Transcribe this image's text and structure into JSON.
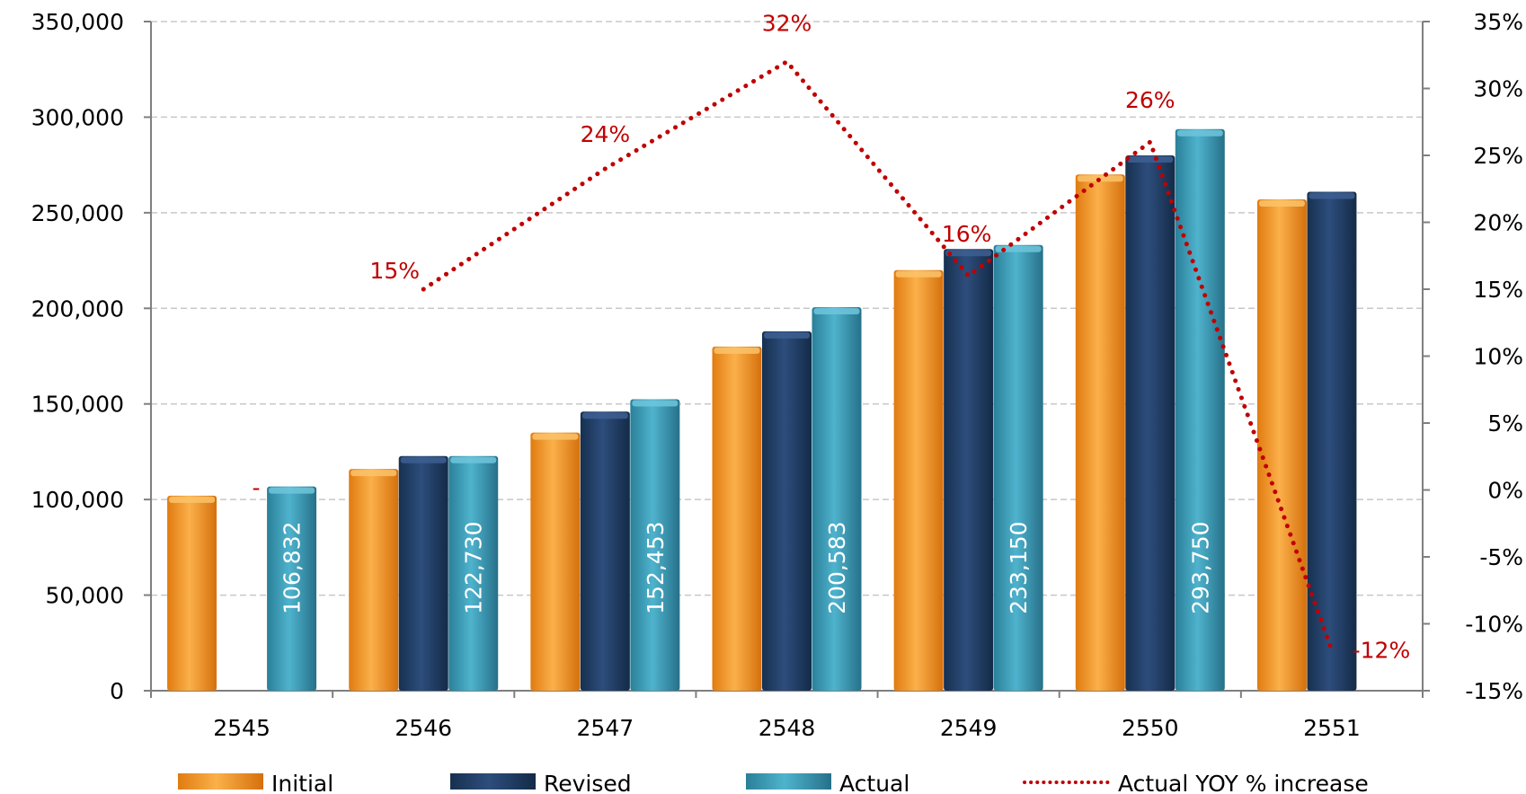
{
  "chart_data": {
    "type": "bar",
    "categories": [
      "2545",
      "2546",
      "2547",
      "2548",
      "2549",
      "2550",
      "2551"
    ],
    "series": [
      {
        "name": "Initial",
        "kind": "bar",
        "axis": "left",
        "values": [
          102000,
          116000,
          135000,
          180000,
          220000,
          270000,
          257000
        ],
        "color": "#f7941d"
      },
      {
        "name": "Revised",
        "kind": "bar",
        "axis": "left",
        "values": [
          null,
          122730,
          146000,
          188000,
          231000,
          280000,
          261000
        ],
        "color": "#1f3b63"
      },
      {
        "name": "Actual",
        "kind": "bar",
        "axis": "left",
        "values": [
          106832,
          122730,
          152453,
          200583,
          233150,
          293750,
          null
        ],
        "color": "#3a96b0"
      },
      {
        "name": "Actual YOY % increase",
        "kind": "line",
        "style": "dotted",
        "axis": "right",
        "values": [
          null,
          15,
          24,
          32,
          16,
          26,
          -12
        ],
        "color": "#c00000"
      }
    ],
    "bar_labels": {
      "Actual": [
        "106,832",
        "122,730",
        "152,453",
        "200,583",
        "233,150",
        "293,750",
        ""
      ]
    },
    "line_labels": [
      "-",
      "15%",
      "24%",
      "32%",
      "16%",
      "26%",
      "-12%"
    ],
    "left_axis": {
      "ylim": [
        0,
        350000
      ],
      "ticks": [
        "0",
        "50,000",
        "100,000",
        "150,000",
        "200,000",
        "250,000",
        "300,000",
        "350,000"
      ],
      "tick_values": [
        0,
        50000,
        100000,
        150000,
        200000,
        250000,
        300000,
        350000
      ]
    },
    "right_axis": {
      "ylim": [
        -15,
        35
      ],
      "ticks": [
        "-15%",
        "-10%",
        "-5%",
        "0%",
        "5%",
        "10%",
        "15%",
        "20%",
        "25%",
        "30%",
        "35%"
      ],
      "tick_values": [
        -15,
        -10,
        -5,
        0,
        5,
        10,
        15,
        20,
        25,
        30,
        35
      ]
    },
    "grid": true,
    "legend": "bottom"
  }
}
